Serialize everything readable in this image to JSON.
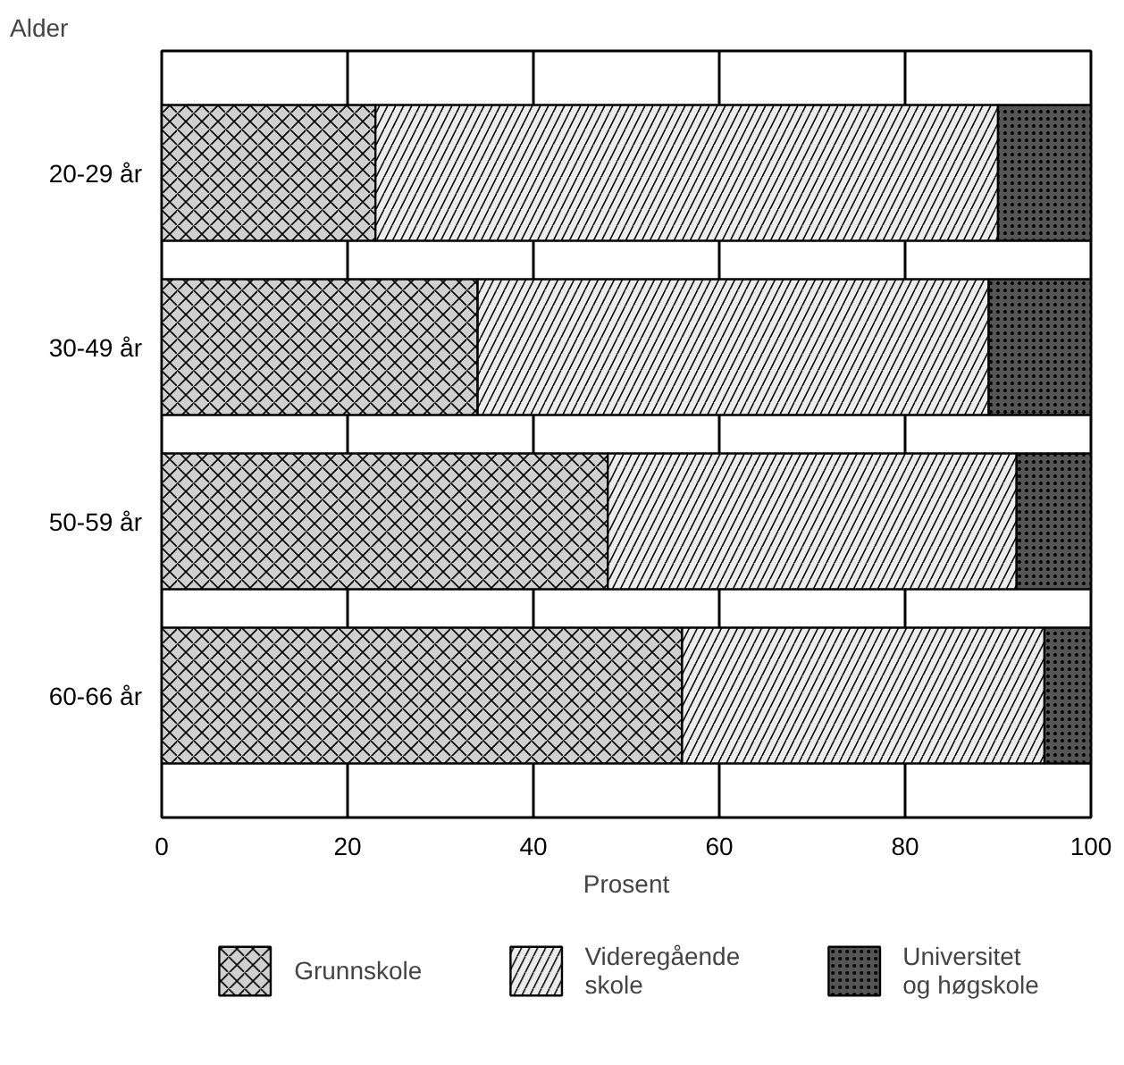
{
  "chart_data": {
    "type": "bar",
    "orientation": "horizontal",
    "stacked": true,
    "ylabel": "Alder",
    "xlabel": "Prosent",
    "categories": [
      "20-29 år",
      "30-49 år",
      "50-59 år",
      "60-66 år"
    ],
    "series": [
      {
        "name": "Grunnskole",
        "color": "#d0d0d0",
        "values": [
          23,
          34,
          48,
          56
        ]
      },
      {
        "name": "Videregående\nskole",
        "color": "#ececec",
        "values": [
          67,
          55,
          44,
          39
        ]
      },
      {
        "name": "Universitet\nog høgskole",
        "color": "#555555",
        "values": [
          10,
          11,
          8,
          5
        ]
      }
    ],
    "xlim": [
      0,
      100
    ],
    "xticks": [
      0,
      20,
      40,
      60,
      80,
      100
    ],
    "grid": "x",
    "legend": "bottom"
  }
}
